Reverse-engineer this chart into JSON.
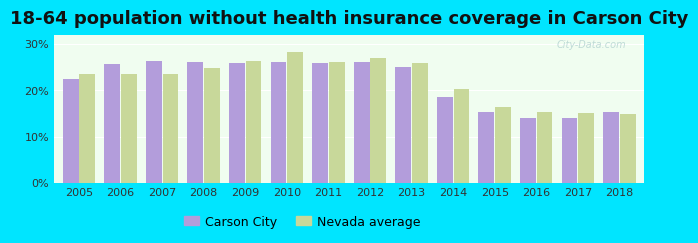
{
  "title": "18-64 population without health insurance coverage in Carson City",
  "years": [
    2005,
    2006,
    2007,
    2008,
    2009,
    2010,
    2011,
    2012,
    2013,
    2014,
    2015,
    2016,
    2017,
    2018
  ],
  "carson_city": [
    22.5,
    25.7,
    26.2,
    26.0,
    25.8,
    26.1,
    25.8,
    26.1,
    24.9,
    18.5,
    15.2,
    14.1,
    14.1,
    15.2
  ],
  "nevada_avg": [
    23.4,
    23.4,
    23.4,
    24.8,
    26.3,
    28.2,
    26.1,
    27.0,
    25.9,
    20.3,
    16.4,
    15.3,
    15.1,
    14.8
  ],
  "bar_color_carson": "#b39ddb",
  "bar_color_nevada": "#c8d89a",
  "background_outer": "#00e5ff",
  "background_inner": "#f0fdf0",
  "yticks": [
    0,
    10,
    20,
    30
  ],
  "ylim": [
    0,
    32
  ],
  "ylabel_format": "%",
  "legend_carson": "Carson City",
  "legend_nevada": "Nevada average",
  "title_fontsize": 13,
  "watermark": "City-Data.com"
}
